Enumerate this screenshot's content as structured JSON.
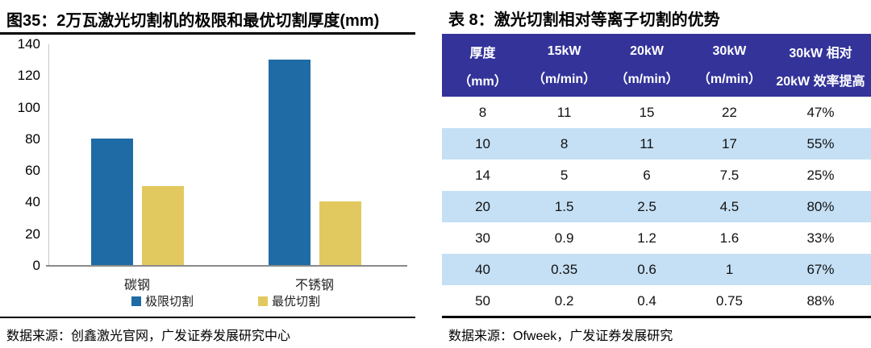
{
  "colors": {
    "bar_blue": "#1F6BA5",
    "bar_yellow": "#E2C95F",
    "table_header_bg": "#33339A",
    "table_row_alt_bg": "#C5E0F5",
    "rule_black": "#000000"
  },
  "left_panel": {
    "title": "图35：2万瓦激光切割机的极限和最优切割厚度(mm)",
    "source": "数据来源：创鑫激光官网，广发证券发展研究中心"
  },
  "right_panel": {
    "title": "表 8：激光切割相对等离子切割的优势",
    "source": "数据来源：Ofweek，广发证券发展研究",
    "table": {
      "header_line1": [
        "厚度",
        "15kW",
        "20kW",
        "30kW",
        "30kW 相对"
      ],
      "header_line2": [
        "（mm）",
        "（m/min）",
        "（m/min）",
        "（m/min）",
        "20kW 效率提高"
      ],
      "rows": [
        [
          "8",
          "11",
          "15",
          "22",
          "47%"
        ],
        [
          "10",
          "8",
          "11",
          "17",
          "55%"
        ],
        [
          "14",
          "5",
          "6",
          "7.5",
          "25%"
        ],
        [
          "20",
          "1.5",
          "2.5",
          "4.5",
          "80%"
        ],
        [
          "30",
          "0.9",
          "1.2",
          "1.6",
          "33%"
        ],
        [
          "40",
          "0.35",
          "0.6",
          "1",
          "67%"
        ],
        [
          "50",
          "0.2",
          "0.4",
          "0.75",
          "88%"
        ]
      ]
    }
  },
  "chart_data": [
    {
      "type": "bar",
      "title": "图35：2万瓦激光切割机的极限和最优切割厚度(mm)",
      "categories": [
        "碳钢",
        "不锈钢"
      ],
      "series": [
        {
          "name": "极限切割",
          "values": [
            80,
            130
          ],
          "color": "#1F6BA5"
        },
        {
          "name": "最优切割",
          "values": [
            50,
            40
          ],
          "color": "#E2C95F"
        }
      ],
      "ylim": [
        0,
        140
      ],
      "yticks": [
        0,
        20,
        40,
        60,
        80,
        100,
        120,
        140
      ],
      "ylabel": "",
      "xlabel": "",
      "grid": false,
      "legend_position": "bottom"
    },
    {
      "type": "table",
      "title": "表 8：激光切割相对等离子切割的优势",
      "columns": [
        "厚度（mm）",
        "15kW（m/min）",
        "20kW（m/min）",
        "30kW（m/min）",
        "30kW 相对 20kW 效率提高"
      ],
      "rows": [
        [
          8,
          11,
          15,
          22,
          "47%"
        ],
        [
          10,
          8,
          11,
          17,
          "55%"
        ],
        [
          14,
          5,
          6,
          7.5,
          "25%"
        ],
        [
          20,
          1.5,
          2.5,
          4.5,
          "80%"
        ],
        [
          30,
          0.9,
          1.2,
          1.6,
          "33%"
        ],
        [
          40,
          0.35,
          0.6,
          1,
          "67%"
        ],
        [
          50,
          0.2,
          0.4,
          0.75,
          "88%"
        ]
      ]
    }
  ]
}
